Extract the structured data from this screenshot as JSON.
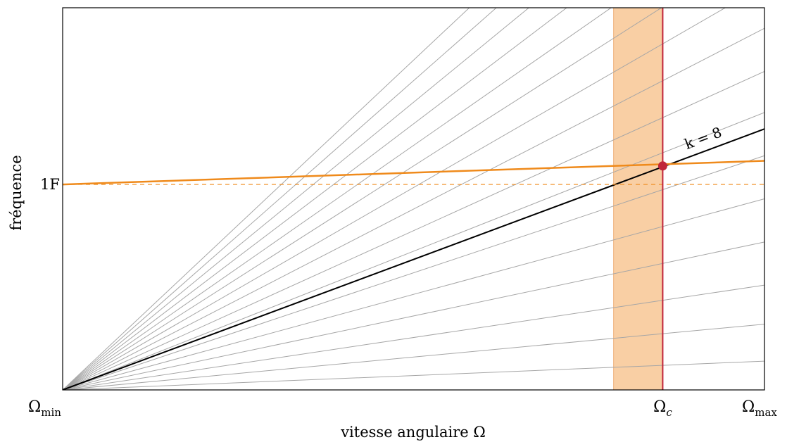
{
  "chart_data": {
    "type": "line",
    "title": "",
    "xlabel": "vitesse angulaire Ω",
    "ylabel": "fréquence",
    "xlim": [
      0,
      1
    ],
    "ylim": [
      0,
      1.86
    ],
    "x_tick_labels": {
      "min": {
        "main": "Ω",
        "sub": "min"
      },
      "max": {
        "main": "Ω",
        "sub": "max"
      },
      "critical": {
        "main": "Ω",
        "sub": "c"
      }
    },
    "y_tick_labels": [
      {
        "label": "1F",
        "value": 1.0
      }
    ],
    "order_line_slopes": [
      0.14,
      0.32,
      0.51,
      0.72,
      0.93,
      1.14,
      1.35,
      1.55,
      1.76,
      1.97,
      2.18,
      2.38,
      2.59,
      2.8,
      3.01,
      3.21
    ],
    "highlighted_order": {
      "label": "k = 8",
      "slope": 1.27
    },
    "eigenfrequency": {
      "y_at_min": 1.0,
      "y_at_max": 1.115,
      "reference_value": 1.0
    },
    "critical_speed": {
      "x": 0.855,
      "y": 1.09
    },
    "critical_band": [
      0.785,
      0.855
    ],
    "colors": {
      "order_lines": "#a6a6a6",
      "highlighted": "#000000",
      "eigenfrequency": "#ef8a1b",
      "critical": "#c0263a",
      "band": "#f9cfa4",
      "band_edge": "#efb07a"
    }
  }
}
